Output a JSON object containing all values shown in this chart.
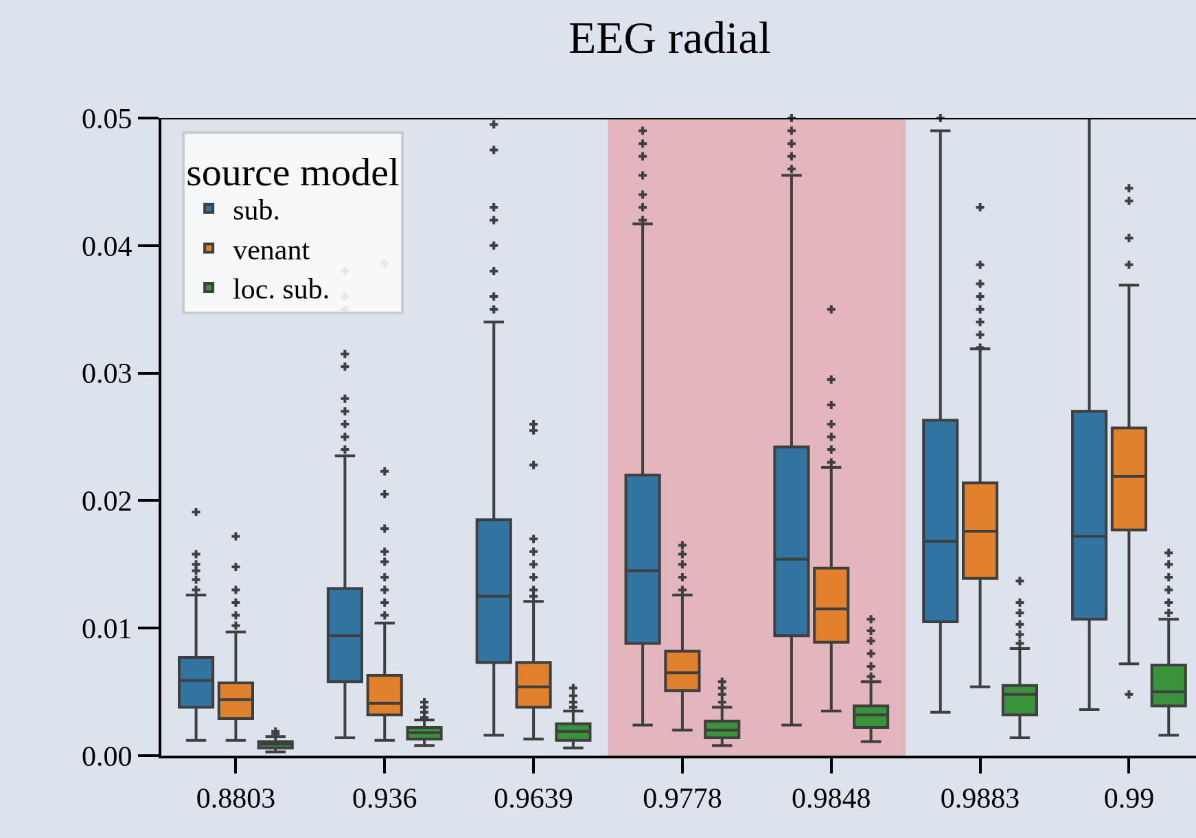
{
  "chart_data": {
    "type": "box",
    "title": "EEG radial",
    "legend_title": "source model",
    "legend": "top left",
    "grid": false,
    "marker": "cross",
    "categories": [
      "0.8803",
      "0.936",
      "0.9639",
      "0.9778",
      "0.9848",
      "0.9883",
      "0.99"
    ],
    "ylim": [
      0,
      0.05
    ],
    "yticks": [
      {
        "value": 0,
        "label": "0.00"
      },
      0.01,
      0.02,
      0.03,
      0.04,
      0.05
    ],
    "bands": [
      {
        "axis": "x",
        "from": "0.9778",
        "to": "0.9848",
        "color": "#e3b5bd"
      }
    ],
    "series": [
      {
        "name": "sub.",
        "color": "#3274a1",
        "boxes": [
          {
            "low": 0.0012,
            "q1": 0.0038,
            "median": 0.0059,
            "q3": 0.0077,
            "high": 0.0126,
            "outliers": [
              0.013,
              0.0138,
              0.0145,
              0.015,
              0.0158,
              0.0191
            ]
          },
          {
            "low": 0.0014,
            "q1": 0.0058,
            "median": 0.0094,
            "q3": 0.0131,
            "high": 0.0235,
            "outliers": [
              0.024,
              0.025,
              0.026,
              0.027,
              0.028,
              0.0305,
              0.0315,
              0.035,
              0.036,
              0.038
            ]
          },
          {
            "low": 0.0016,
            "q1": 0.0073,
            "median": 0.0125,
            "q3": 0.0185,
            "high": 0.034,
            "outliers": [
              0.035,
              0.036,
              0.038,
              0.04,
              0.042,
              0.043,
              0.0475,
              0.0495
            ]
          },
          {
            "low": 0.0024,
            "q1": 0.0088,
            "median": 0.0145,
            "q3": 0.022,
            "high": 0.0417,
            "outliers": [
              0.042,
              0.043,
              0.044,
              0.0455,
              0.047,
              0.048,
              0.049
            ]
          },
          {
            "low": 0.0024,
            "q1": 0.0094,
            "median": 0.0154,
            "q3": 0.0242,
            "high": 0.0455,
            "outliers": [
              0.046,
              0.047,
              0.048,
              0.049,
              0.05
            ]
          },
          {
            "low": 0.0034,
            "q1": 0.0105,
            "median": 0.0168,
            "q3": 0.0263,
            "high": 0.049,
            "outliers": [
              0.05
            ]
          },
          {
            "low": 0.0036,
            "q1": 0.0107,
            "median": 0.0172,
            "q3": 0.027,
            "high": 0.05
          }
        ]
      },
      {
        "name": "venant",
        "color": "#e1812c",
        "boxes": [
          {
            "low": 0.0012,
            "q1": 0.0029,
            "median": 0.0044,
            "q3": 0.0057,
            "high": 0.0097,
            "outliers": [
              0.0102,
              0.011,
              0.012,
              0.013,
              0.0148,
              0.0172
            ]
          },
          {
            "low": 0.0012,
            "q1": 0.0032,
            "median": 0.0041,
            "q3": 0.0063,
            "high": 0.0104,
            "outliers": [
              0.011,
              0.012,
              0.013,
              0.014,
              0.0152,
              0.016,
              0.0178,
              0.0205,
              0.0223,
              0.0386
            ]
          },
          {
            "low": 0.0013,
            "q1": 0.0038,
            "median": 0.0054,
            "q3": 0.0073,
            "high": 0.0121,
            "outliers": [
              0.0125,
              0.013,
              0.014,
              0.015,
              0.016,
              0.017,
              0.0228,
              0.0255,
              0.026
            ]
          },
          {
            "low": 0.002,
            "q1": 0.0051,
            "median": 0.0065,
            "q3": 0.0082,
            "high": 0.0126,
            "outliers": [
              0.013,
              0.014,
              0.015,
              0.0158,
              0.0165
            ]
          },
          {
            "low": 0.0035,
            "q1": 0.0089,
            "median": 0.0115,
            "q3": 0.0147,
            "high": 0.0226,
            "outliers": [
              0.023,
              0.024,
              0.025,
              0.026,
              0.0275,
              0.0295,
              0.035
            ]
          },
          {
            "low": 0.0054,
            "q1": 0.0139,
            "median": 0.0176,
            "q3": 0.0214,
            "high": 0.0319,
            "outliers": [
              0.032,
              0.033,
              0.034,
              0.035,
              0.036,
              0.037,
              0.0385,
              0.043
            ]
          },
          {
            "low": 0.0072,
            "q1": 0.0177,
            "median": 0.0219,
            "q3": 0.0257,
            "high": 0.0369,
            "outliers": [
              0.0048,
              0.0385,
              0.0406,
              0.0435,
              0.0445
            ]
          }
        ]
      },
      {
        "name": "loc. sub.",
        "color": "#3a923a",
        "boxes": [
          {
            "low": 0.0003,
            "q1": 0.0006,
            "median": 0.0009,
            "q3": 0.0011,
            "high": 0.0015,
            "outliers": [
              0.0017,
              0.0019
            ]
          },
          {
            "low": 0.0008,
            "q1": 0.0013,
            "median": 0.0018,
            "q3": 0.0022,
            "high": 0.0028,
            "outliers": [
              0.003,
              0.0034,
              0.0038,
              0.0042
            ]
          },
          {
            "low": 0.0006,
            "q1": 0.0012,
            "median": 0.0019,
            "q3": 0.0025,
            "high": 0.0035,
            "outliers": [
              0.0038,
              0.0042,
              0.0047,
              0.0053
            ]
          },
          {
            "low": 0.0008,
            "q1": 0.0014,
            "median": 0.002,
            "q3": 0.0027,
            "high": 0.0038,
            "outliers": [
              0.0042,
              0.0048,
              0.0053,
              0.0058
            ]
          },
          {
            "low": 0.0011,
            "q1": 0.0022,
            "median": 0.0032,
            "q3": 0.0039,
            "high": 0.0058,
            "outliers": [
              0.0062,
              0.007,
              0.008,
              0.009,
              0.0098,
              0.0107
            ]
          },
          {
            "low": 0.0014,
            "q1": 0.0032,
            "median": 0.0048,
            "q3": 0.0055,
            "high": 0.0084,
            "outliers": [
              0.0088,
              0.0095,
              0.0103,
              0.0112,
              0.012,
              0.0137
            ]
          },
          {
            "low": 0.0016,
            "q1": 0.0039,
            "median": 0.005,
            "q3": 0.0071,
            "high": 0.0107,
            "outliers": [
              0.0112,
              0.012,
              0.013,
              0.014,
              0.015,
              0.0159
            ]
          }
        ]
      }
    ]
  }
}
